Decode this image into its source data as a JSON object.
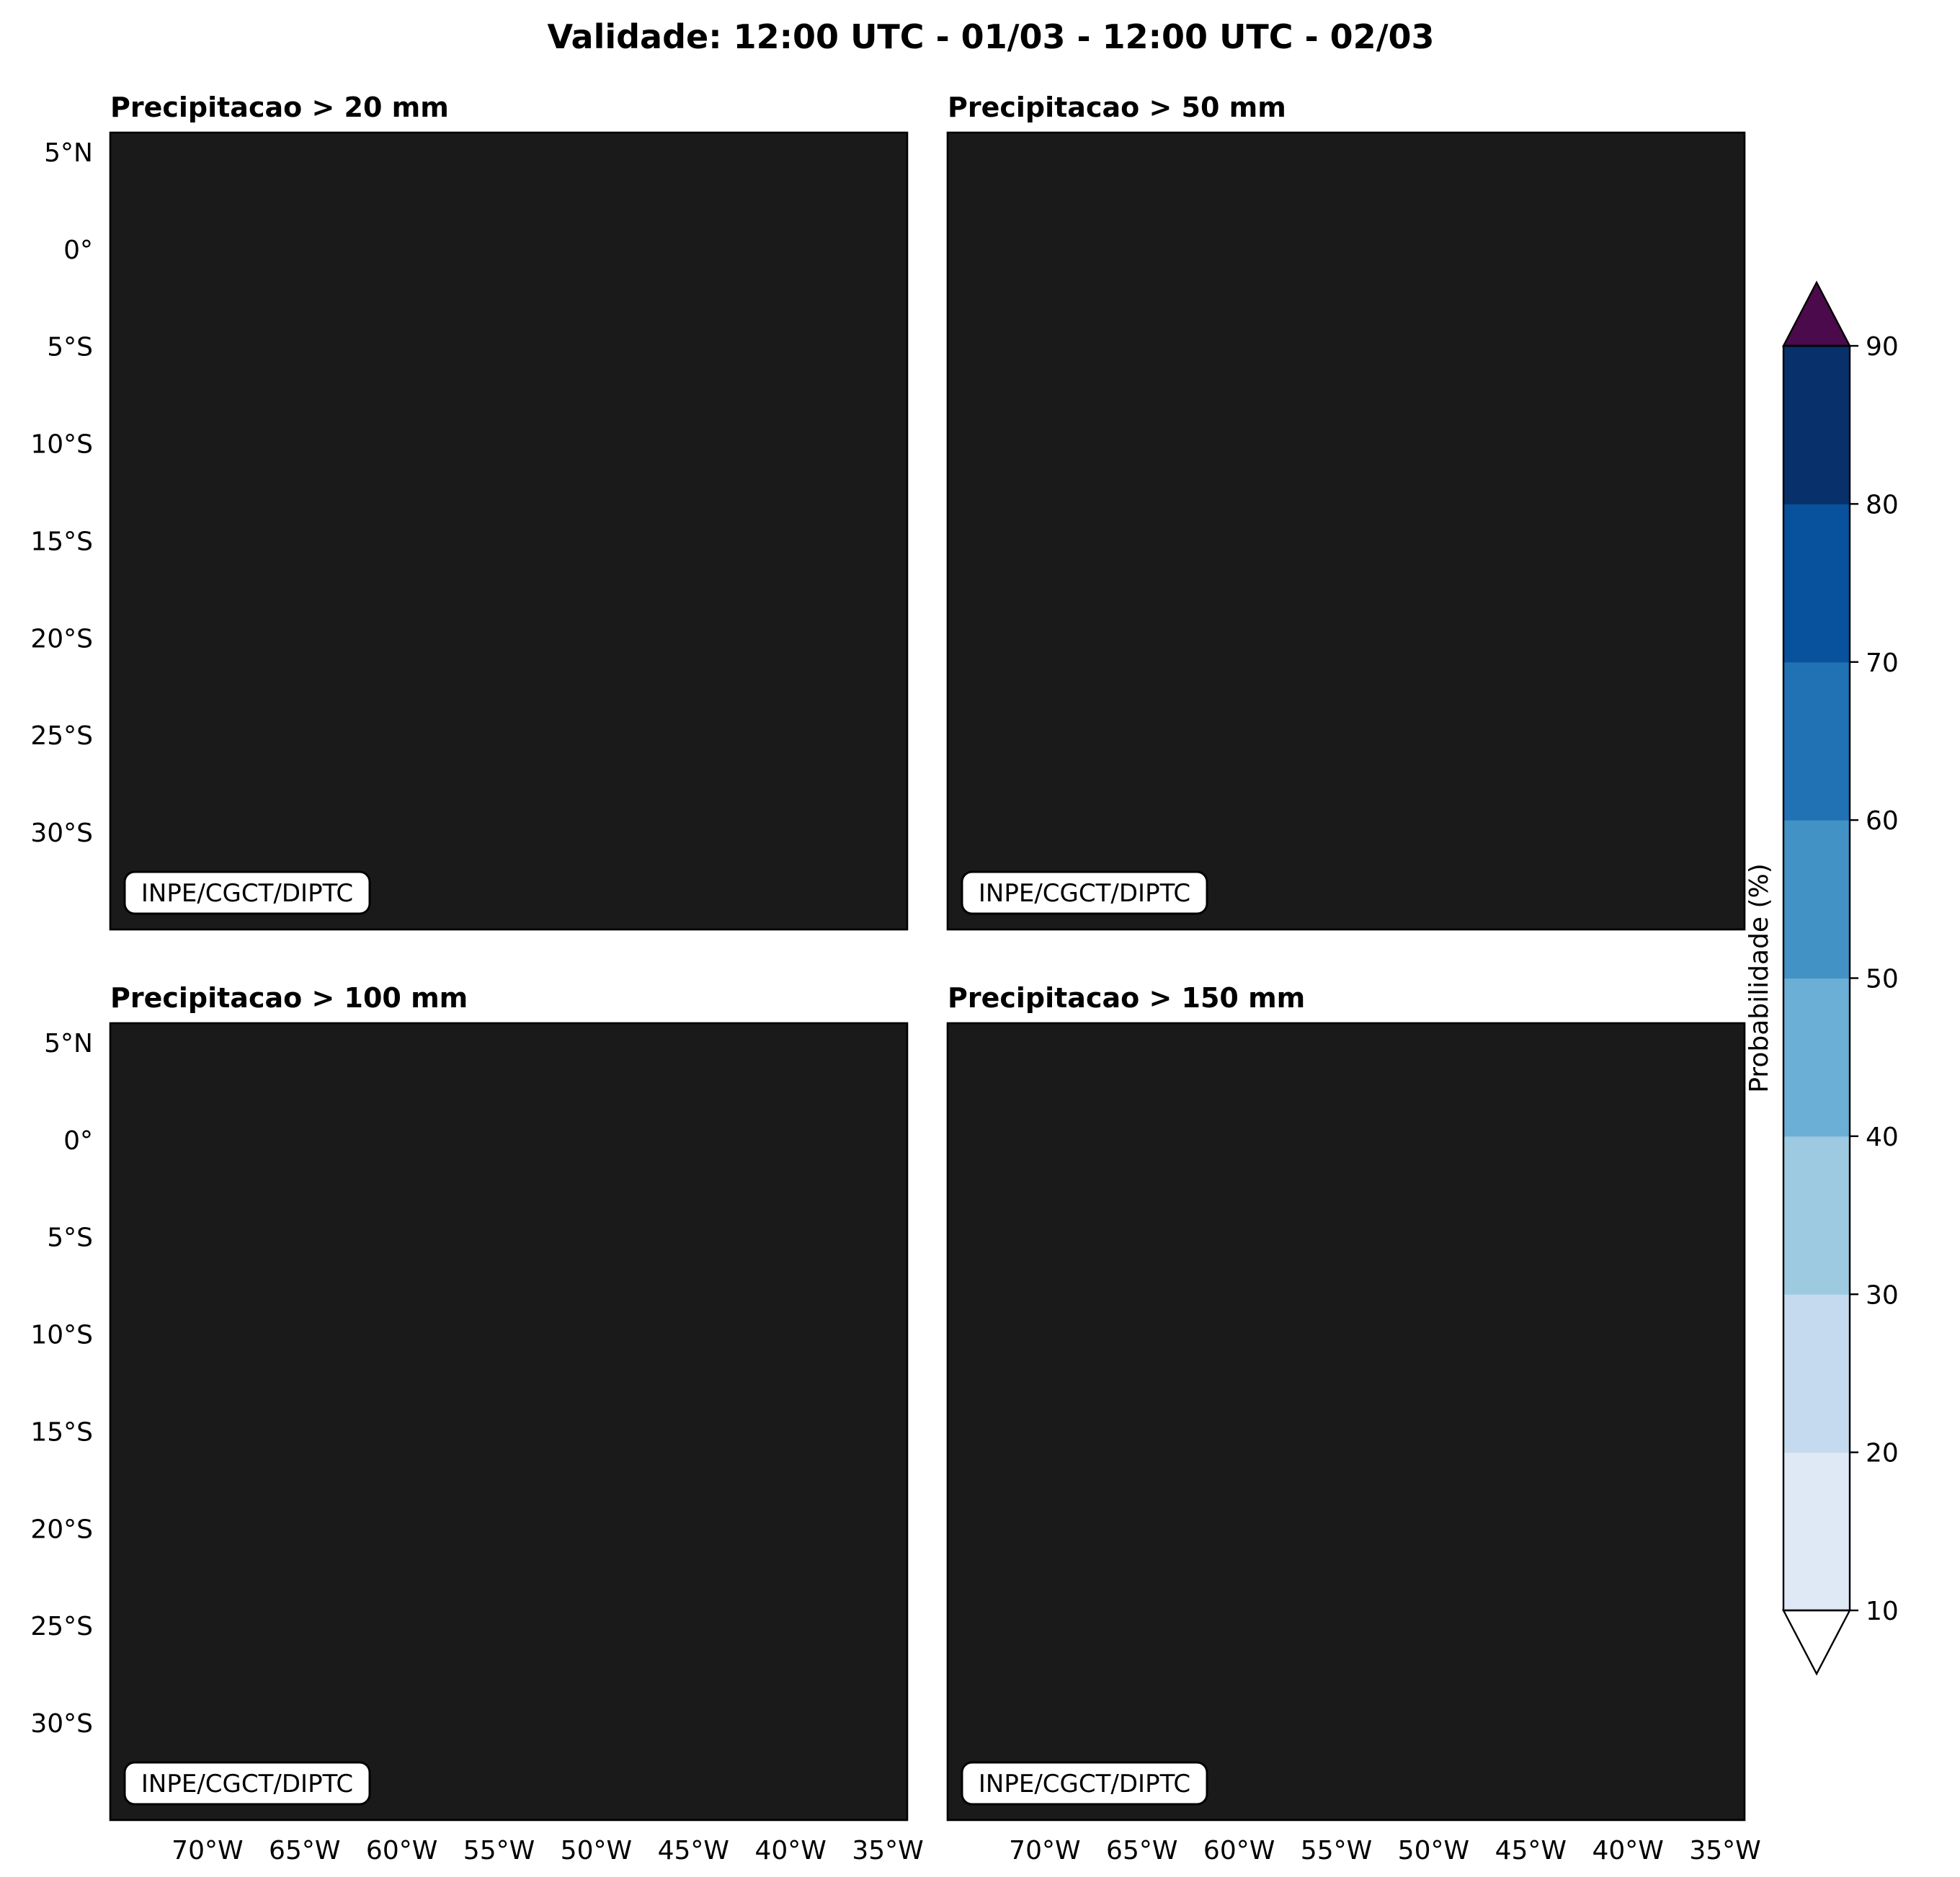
{
  "title": "Validade: 12:00 UTC - 01/03 - 12:00 UTC - 02/03",
  "credit": "INPE/CGCT/DIPTC",
  "panels": [
    {
      "title": "Precipitacao > 20 mm"
    },
    {
      "title": "Precipitacao > 50 mm"
    },
    {
      "title": "Precipitacao > 100 mm"
    },
    {
      "title": "Precipitacao > 150 mm"
    }
  ],
  "map": {
    "lon_range": [
      -75,
      -34
    ],
    "lat_range": [
      -35,
      6
    ],
    "lon_ticks": [
      -70,
      -65,
      -60,
      -55,
      -50,
      -45,
      -40,
      -35
    ],
    "lat_ticks": [
      5,
      0,
      -5,
      -10,
      -15,
      -20,
      -25,
      -30
    ],
    "lon_tick_labels": [
      "70°W",
      "65°W",
      "60°W",
      "55°W",
      "50°W",
      "45°W",
      "40°W",
      "35°W"
    ],
    "lat_tick_labels": [
      "5°N",
      "0°",
      "5°S",
      "10°S",
      "15°S",
      "20°S",
      "25°S",
      "30°S"
    ],
    "grid": true
  },
  "colorbar": {
    "label": "Probabilidade (%)",
    "levels": [
      10,
      20,
      30,
      40,
      50,
      60,
      70,
      80,
      90
    ],
    "tick_labels": [
      "10",
      "20",
      "30",
      "40",
      "50",
      "60",
      "70",
      "80",
      "90"
    ],
    "colors": [
      "#dee9f5",
      "#c5daee",
      "#9ecae1",
      "#6baed6",
      "#4292c6",
      "#2171b5",
      "#08519c",
      "#08306b"
    ],
    "over_color": "#4b0a4b",
    "under_color": "#ffffff",
    "extend": "both"
  }
}
